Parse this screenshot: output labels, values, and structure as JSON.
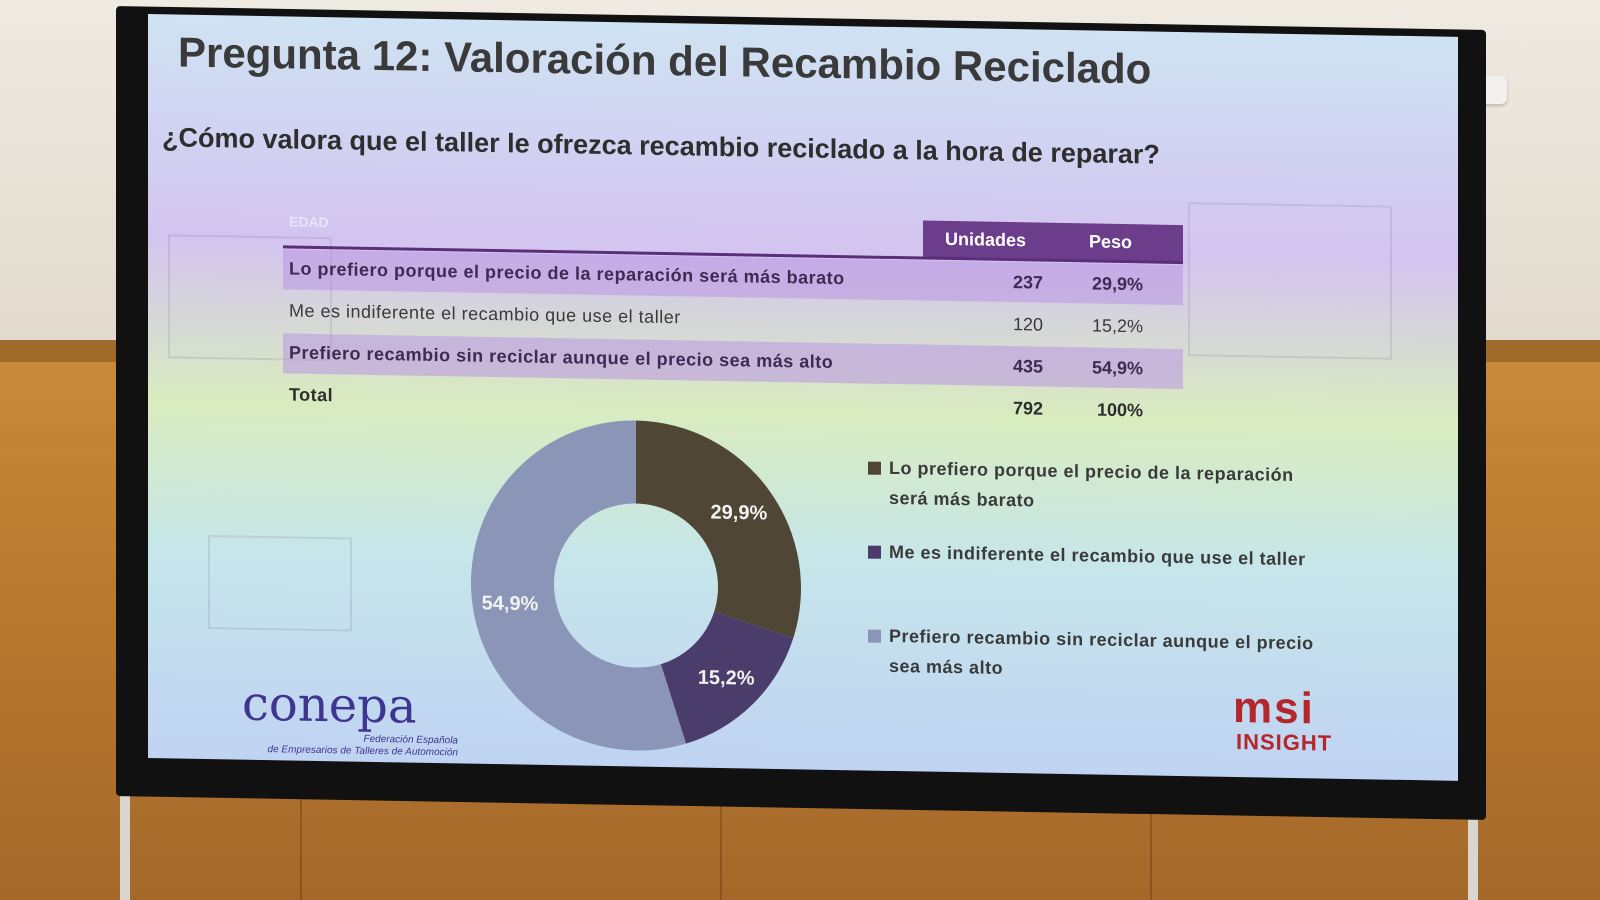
{
  "slide": {
    "title": "Pregunta 12: Valoración del Recambio Reciclado",
    "subtitle": "¿Cómo valora que el taller le ofrezca recambio reciclado a la hora de reparar?"
  },
  "table": {
    "corner_label": "EDAD",
    "headers": [
      "Unidades",
      "Peso"
    ],
    "rows": [
      {
        "label": "Lo prefiero porque el precio de la reparación será más barato",
        "units": "237",
        "weight": "29,9%"
      },
      {
        "label": "Me es indiferente el recambio que use el taller",
        "units": "120",
        "weight": "15,2%"
      },
      {
        "label": "Prefiero recambio sin reciclar aunque el precio sea más alto",
        "units": "435",
        "weight": "54,9%"
      }
    ],
    "total": {
      "label": "Total",
      "units": "792",
      "weight": "100%"
    }
  },
  "chart_data": {
    "type": "pie",
    "donut": true,
    "categories": [
      "Lo prefiero porque el precio de la reparación será más barato",
      "Me es indiferente el recambio que use el taller",
      "Prefiero recambio sin reciclar aunque el precio sea más alto"
    ],
    "values": [
      29.9,
      15.2,
      54.9
    ],
    "data_labels": [
      "29,9%",
      "15,2%",
      "54,9%"
    ],
    "colors": [
      "#4f4636",
      "#4a3d6b",
      "#8a95b8"
    ],
    "legend": {
      "placement": "right",
      "entries": [
        [
          "Lo prefiero porque el precio de la reparación",
          "será más barato"
        ],
        [
          "Me es indiferente el recambio que use el taller"
        ],
        [
          "Prefiero recambio sin reciclar aunque el precio",
          "sea más alto"
        ]
      ]
    }
  },
  "logos": {
    "left": "conepa",
    "left_sub": [
      "Federación Española",
      "de Empresarios de Talleres de Automoción"
    ],
    "right": "msi",
    "right_sub": "INSIGHT"
  }
}
